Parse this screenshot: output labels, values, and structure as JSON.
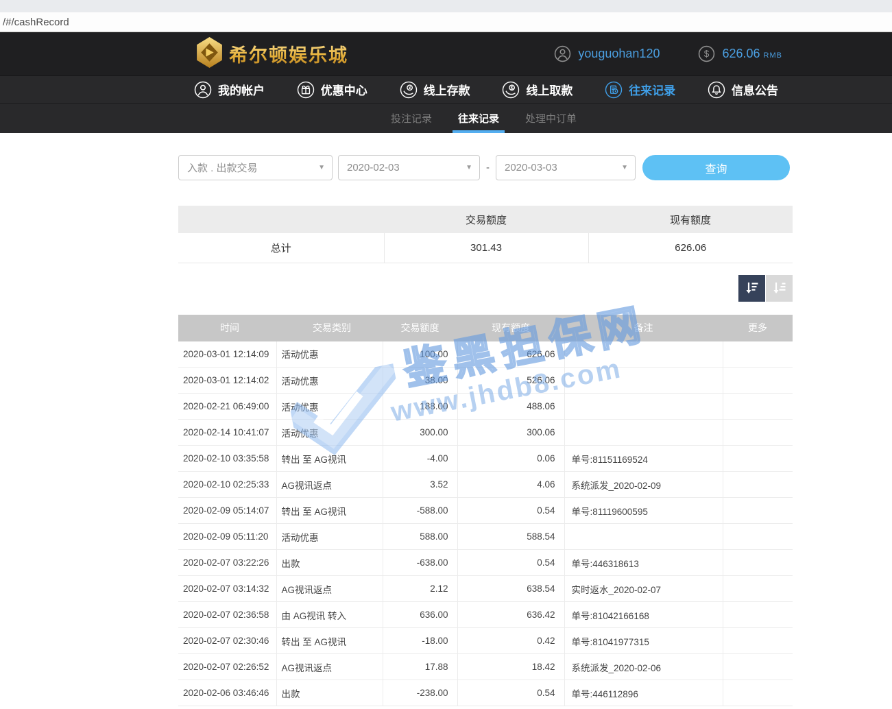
{
  "browser": {
    "url_text": "/#/cashRecord"
  },
  "header": {
    "brand_name": "希尔顿娱乐城",
    "username": "youguohan120",
    "balance_amount": "626.06",
    "balance_currency": "RMB"
  },
  "nav": {
    "items": [
      {
        "label": "我的帐户",
        "icon": "user-icon"
      },
      {
        "label": "优惠中心",
        "icon": "gift-icon"
      },
      {
        "label": "线上存款",
        "icon": "deposit-icon"
      },
      {
        "label": "线上取款",
        "icon": "withdraw-icon"
      },
      {
        "label": "往来记录",
        "icon": "records-icon",
        "active": true
      },
      {
        "label": "信息公告",
        "icon": "bell-icon"
      }
    ]
  },
  "subnav": {
    "tabs": [
      "投注记录",
      "往来记录",
      "处理中订单"
    ],
    "active_tab": "往来记录"
  },
  "filters": {
    "type_select": "入款 . 出款交易",
    "date_from": "2020-02-03",
    "date_separator": "-",
    "date_to": "2020-03-03",
    "query_button": "查询"
  },
  "summary": {
    "col_transaction": "交易额度",
    "col_balance": "现有额度",
    "total_label": "总计",
    "transaction_total": "301.43",
    "balance_total": "626.06"
  },
  "records": {
    "headers": [
      "时间",
      "交易类别",
      "交易额度",
      "现有额度",
      "备注",
      "更多"
    ],
    "rows": [
      {
        "time": "2020-03-01 12:14:09",
        "type": "活动优惠",
        "amount": "100.00",
        "balance": "626.06",
        "note": ""
      },
      {
        "time": "2020-03-01 12:14:02",
        "type": "活动优惠",
        "amount": "38.00",
        "balance": "526.06",
        "note": ""
      },
      {
        "time": "2020-02-21 06:49:00",
        "type": "活动优惠",
        "amount": "188.00",
        "balance": "488.06",
        "note": ""
      },
      {
        "time": "2020-02-14 10:41:07",
        "type": "活动优惠",
        "amount": "300.00",
        "balance": "300.06",
        "note": ""
      },
      {
        "time": "2020-02-10 03:35:58",
        "type": "转出 至 AG视讯",
        "amount": "-4.00",
        "balance": "0.06",
        "note": "单号:81151169524"
      },
      {
        "time": "2020-02-10 02:25:33",
        "type": "AG视讯返点",
        "amount": "3.52",
        "balance": "4.06",
        "note": "系统派发_2020-02-09"
      },
      {
        "time": "2020-02-09 05:14:07",
        "type": "转出 至 AG视讯",
        "amount": "-588.00",
        "balance": "0.54",
        "note": "单号:81119600595"
      },
      {
        "time": "2020-02-09 05:11:20",
        "type": "活动优惠",
        "amount": "588.00",
        "balance": "588.54",
        "note": ""
      },
      {
        "time": "2020-02-07 03:22:26",
        "type": "出款",
        "amount": "-638.00",
        "balance": "0.54",
        "note": "单号:446318613"
      },
      {
        "time": "2020-02-07 03:14:32",
        "type": "AG视讯返点",
        "amount": "2.12",
        "balance": "638.54",
        "note": "实时返水_2020-02-07"
      },
      {
        "time": "2020-02-07 02:36:58",
        "type": "由 AG视讯 转入",
        "amount": "636.00",
        "balance": "636.42",
        "note": "单号:81042166168"
      },
      {
        "time": "2020-02-07 02:30:46",
        "type": "转出 至 AG视讯",
        "amount": "-18.00",
        "balance": "0.42",
        "note": "单号:81041977315"
      },
      {
        "time": "2020-02-07 02:26:52",
        "type": "AG视讯返点",
        "amount": "17.88",
        "balance": "18.42",
        "note": "系统派发_2020-02-06"
      },
      {
        "time": "2020-02-06 03:46:46",
        "type": "出款",
        "amount": "-238.00",
        "balance": "0.54",
        "note": "单号:446112896"
      }
    ]
  },
  "watermark": {
    "title": "鉴黑担保网",
    "url": "www.jhdb8.com"
  },
  "colors": {
    "accent_blue": "#4b9fe1",
    "nav_active_blue": "#3f9fe8",
    "tab_underline_blue": "#54aef0",
    "button_blue": "#5ec1f4",
    "gold": "#e8b33c",
    "sort_active_bg": "#36425a",
    "table_header_gray": "#c7c7c7"
  }
}
